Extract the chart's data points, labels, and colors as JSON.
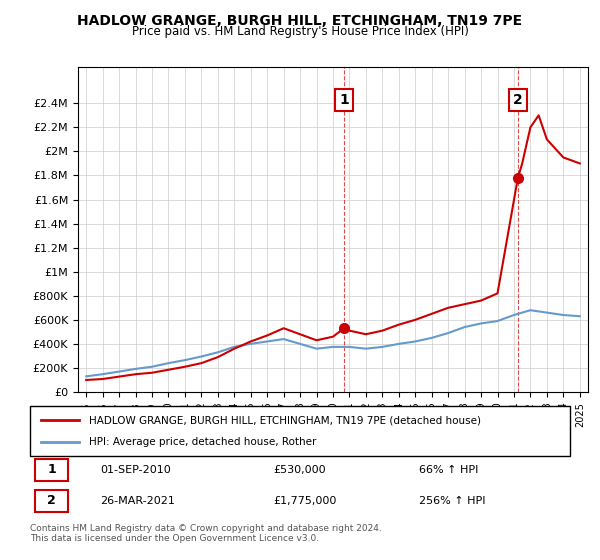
{
  "title": "HADLOW GRANGE, BURGH HILL, ETCHINGHAM, TN19 7PE",
  "subtitle": "Price paid vs. HM Land Registry's House Price Index (HPI)",
  "legend_line1": "HADLOW GRANGE, BURGH HILL, ETCHINGHAM, TN19 7PE (detached house)",
  "legend_line2": "HPI: Average price, detached house, Rother",
  "annotation1_label": "1",
  "annotation1_date": "01-SEP-2010",
  "annotation1_price": "£530,000",
  "annotation1_hpi": "66% ↑ HPI",
  "annotation1_year": 2010.67,
  "annotation1_value": 530000,
  "annotation2_label": "2",
  "annotation2_date": "26-MAR-2021",
  "annotation2_price": "£1,775,000",
  "annotation2_hpi": "256% ↑ HPI",
  "annotation2_year": 2021.23,
  "annotation2_value": 1775000,
  "footer": "Contains HM Land Registry data © Crown copyright and database right 2024.\nThis data is licensed under the Open Government Licence v3.0.",
  "red_line_color": "#cc0000",
  "blue_line_color": "#6699cc",
  "ylim": [
    0,
    2700000
  ],
  "xlim": [
    1994.5,
    2025.5
  ],
  "yticks": [
    0,
    200000,
    400000,
    600000,
    800000,
    1000000,
    1200000,
    1400000,
    1600000,
    1800000,
    2000000,
    2200000,
    2400000
  ],
  "red_x": [
    1995,
    1996,
    1997,
    1998,
    1999,
    2000,
    2001,
    2002,
    2003,
    2004,
    2005,
    2006,
    2007,
    2008,
    2009,
    2010,
    2010.67,
    2011,
    2012,
    2013,
    2014,
    2015,
    2016,
    2017,
    2018,
    2019,
    2020,
    2021.23,
    2021.5,
    2022,
    2022.5,
    2023,
    2024,
    2025
  ],
  "red_y": [
    100000,
    108000,
    128000,
    148000,
    160000,
    185000,
    210000,
    240000,
    290000,
    360000,
    420000,
    470000,
    530000,
    480000,
    430000,
    460000,
    530000,
    510000,
    480000,
    510000,
    560000,
    600000,
    650000,
    700000,
    730000,
    760000,
    820000,
    1775000,
    1900000,
    2200000,
    2300000,
    2100000,
    1950000,
    1900000
  ],
  "blue_x": [
    1995,
    1996,
    1997,
    1998,
    1999,
    2000,
    2001,
    2002,
    2003,
    2004,
    2005,
    2006,
    2007,
    2008,
    2009,
    2010,
    2011,
    2012,
    2013,
    2014,
    2015,
    2016,
    2017,
    2018,
    2019,
    2020,
    2021,
    2022,
    2023,
    2024,
    2025
  ],
  "blue_y": [
    130000,
    148000,
    170000,
    192000,
    210000,
    240000,
    265000,
    295000,
    330000,
    375000,
    400000,
    420000,
    440000,
    400000,
    360000,
    375000,
    375000,
    360000,
    375000,
    400000,
    420000,
    450000,
    490000,
    540000,
    570000,
    590000,
    640000,
    680000,
    660000,
    640000,
    630000
  ]
}
